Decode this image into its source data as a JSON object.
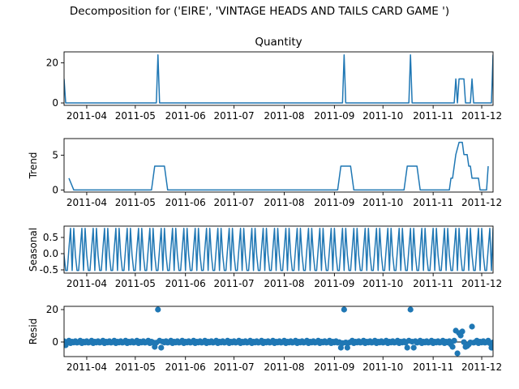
{
  "figure": {
    "suptitle": "Decomposition for ('EIRE', 'VINTAGE HEADS AND TAILS CARD GAME ')"
  },
  "x_ticks": [
    "2011-04",
    "2011-05",
    "2011-06",
    "2011-07",
    "2011-08",
    "2011-09",
    "2011-10",
    "2011-11",
    "2011-12"
  ],
  "colors": {
    "line": "#1f77b4",
    "marker": "#1f77b4",
    "axis": "#000000",
    "background": "#ffffff"
  },
  "chart_data": [
    {
      "type": "line",
      "title": "Quantity",
      "xlabel": "",
      "ylabel": "",
      "x_range": [
        "2011-03-18",
        "2011-12-08"
      ],
      "ylim": [
        -1.2,
        25.5
      ],
      "yticks": [
        0,
        20
      ],
      "grid": false,
      "series": [
        {
          "points": [
            [
              "2011-03-18",
              12
            ],
            [
              "2011-03-19",
              0
            ],
            [
              "2011-05-14",
              0
            ],
            [
              "2011-05-15",
              24
            ],
            [
              "2011-05-16",
              0
            ],
            [
              "2011-09-06",
              0
            ],
            [
              "2011-09-07",
              24
            ],
            [
              "2011-09-08",
              0
            ],
            [
              "2011-10-17",
              0
            ],
            [
              "2011-10-18",
              24
            ],
            [
              "2011-10-19",
              0
            ],
            [
              "2011-11-14",
              0
            ],
            [
              "2011-11-15",
              12
            ],
            [
              "2011-11-16",
              0
            ],
            [
              "2011-11-17",
              12
            ],
            [
              "2011-11-20",
              12
            ],
            [
              "2011-11-21",
              0
            ],
            [
              "2011-11-24",
              0
            ],
            [
              "2011-11-25",
              12
            ],
            [
              "2011-11-26",
              0
            ],
            [
              "2011-12-07",
              0
            ],
            [
              "2011-12-08",
              24
            ]
          ]
        }
      ]
    },
    {
      "type": "line",
      "title": "",
      "xlabel": "",
      "ylabel": "Trend",
      "x_range": [
        "2011-03-18",
        "2011-12-08"
      ],
      "ylim": [
        -0.3,
        7.4
      ],
      "yticks": [
        0,
        5
      ],
      "grid": false,
      "series": [
        {
          "points": [
            [
              "2011-03-21",
              1.7
            ],
            [
              "2011-03-24",
              0
            ],
            [
              "2011-05-11",
              0
            ],
            [
              "2011-05-13",
              3.43
            ],
            [
              "2011-05-19",
              3.43
            ],
            [
              "2011-05-21",
              0
            ],
            [
              "2011-09-03",
              0
            ],
            [
              "2011-09-05",
              3.43
            ],
            [
              "2011-09-11",
              3.43
            ],
            [
              "2011-09-13",
              0
            ],
            [
              "2011-10-14",
              0
            ],
            [
              "2011-10-16",
              3.43
            ],
            [
              "2011-10-22",
              3.43
            ],
            [
              "2011-10-24",
              0
            ],
            [
              "2011-11-11",
              0
            ],
            [
              "2011-11-12",
              1.7
            ],
            [
              "2011-11-13",
              1.7
            ],
            [
              "2011-11-15",
              5.1
            ],
            [
              "2011-11-17",
              6.86
            ],
            [
              "2011-11-19",
              6.86
            ],
            [
              "2011-11-20",
              5.1
            ],
            [
              "2011-11-22",
              5.1
            ],
            [
              "2011-11-23",
              3.43
            ],
            [
              "2011-11-24",
              3.43
            ],
            [
              "2011-11-25",
              1.7
            ],
            [
              "2011-11-29",
              1.7
            ],
            [
              "2011-11-30",
              0
            ],
            [
              "2011-12-04",
              0
            ],
            [
              "2011-12-05",
              3.43
            ]
          ]
        }
      ]
    },
    {
      "type": "line",
      "title": "",
      "xlabel": "",
      "ylabel": "Seasonal",
      "x_range": [
        "2011-03-18",
        "2011-12-08"
      ],
      "ylim": [
        -0.6,
        0.85
      ],
      "yticks": [
        -0.5,
        0.0,
        0.5
      ],
      "grid": false,
      "period_days": 7,
      "pattern": [
        0.78,
        -0.05,
        -0.52,
        -0.52,
        0.15,
        0.78,
        -0.52
      ]
    },
    {
      "type": "scatter",
      "title": "",
      "xlabel": "",
      "ylabel": "Resid",
      "x_range": [
        "2011-03-18",
        "2011-12-08"
      ],
      "ylim": [
        -9,
        22
      ],
      "yticks": [
        0,
        20
      ],
      "grid": false,
      "zero_line": true,
      "outliers": [
        [
          "2011-05-15",
          20
        ],
        [
          "2011-09-07",
          20
        ],
        [
          "2011-10-18",
          20
        ],
        [
          "2011-11-15",
          7
        ],
        [
          "2011-11-16",
          -7
        ],
        [
          "2011-11-17",
          5.5
        ],
        [
          "2011-11-18",
          4
        ],
        [
          "2011-11-19",
          6.5
        ],
        [
          "2011-11-25",
          9.5
        ],
        [
          "2011-05-13",
          -3
        ],
        [
          "2011-05-17",
          -3.5
        ],
        [
          "2011-09-05",
          -3.5
        ],
        [
          "2011-09-09",
          -3.5
        ],
        [
          "2011-10-16",
          -3.5
        ],
        [
          "2011-10-20",
          -3.5
        ],
        [
          "2011-11-12",
          -1.5
        ],
        [
          "2011-11-13",
          -3
        ],
        [
          "2011-11-21",
          -3
        ],
        [
          "2011-11-22",
          -2.5
        ],
        [
          "2011-11-23",
          -1.5
        ],
        [
          "2011-12-07",
          -3.5
        ],
        [
          "2011-03-19",
          -2
        ]
      ],
      "baseline_noise": [
        0.5,
        -0.4,
        -0.1,
        0.8,
        -0.7,
        0.2,
        -0.3
      ]
    }
  ]
}
